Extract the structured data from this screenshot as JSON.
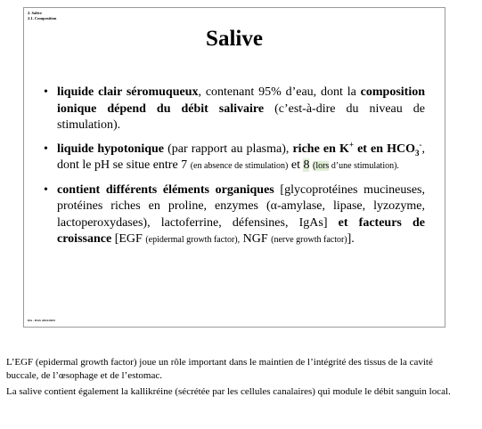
{
  "breadcrumb": {
    "level1": "2. Salive",
    "level2": "2.1. Composition"
  },
  "slide": {
    "title": "Salive",
    "footer": "DG - BAS 2024/2025",
    "bullet1": {
      "b1": "liquide clair séromuqueux",
      "t1": ", contenant 95% d’eau, dont la ",
      "b2": "composition ionique dépend du débit salivaire",
      "t2": " (c’est-à-dire du niveau de stimulation)."
    },
    "bullet2": {
      "b1": "liquide hypotonique",
      "t1": " (par rapport au plasma), ",
      "b2": "riche en K",
      "b2_sup": "+",
      "b3": " et en HCO",
      "b3_sub": "3",
      "b3_sup": "-",
      "t2": ", dont le pH se situe entre 7 ",
      "s1": "(en absence de stimulation)",
      "t3": " et ",
      "hl1": "8",
      "hl2": "(lors",
      "s2": " d’une stimulation)."
    },
    "bullet3": {
      "b1": "contient différents éléments organiques",
      "t1": " [glycoprotéines mucineuses, protéines riches en proline, enzymes (α-amylase, lipase, lyzozyme, lactoperoxydases), lactoferrine, défensines, IgAs] ",
      "b2": "et facteurs de croissance",
      "t2": " [EGF ",
      "s1": "(epidermal growth factor),",
      "t3": " NGF ",
      "s2": "(nerve growth factor)",
      "t4": "]."
    }
  },
  "notes": {
    "p1": "L’EGF (epidermal growth factor) joue un rôle important dans le maintien de l’intégrité des tissus de la cavité buccale, de l’œsophage et de l’estomac.",
    "p2": "La salive contient également la kallikréine (sécrétée par les cellules canalaires) qui module le débit sanguin local."
  }
}
